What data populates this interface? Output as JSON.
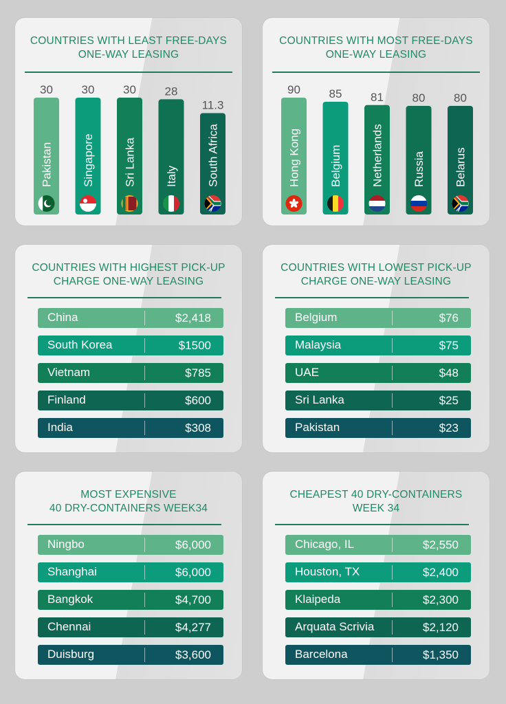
{
  "colors": {
    "row_fills": [
      "#5fb389",
      "#0c9c7c",
      "#137f58",
      "#0e6552",
      "#0e5560"
    ],
    "bar_fills": [
      "#5fb389",
      "#0c9c7c",
      "#137f58",
      "#107152",
      "#0e6552"
    ],
    "title": "#1f8a63"
  },
  "chart_data": [
    {
      "type": "bar",
      "title": "COUNTRIES WITH LEAST FREE-DAYS ONE-WAY LEASING",
      "title_lines": [
        "COUNTRIES WITH LEAST FREE-DAYS",
        "ONE-WAY LEASING"
      ],
      "categories": [
        "Pakistan",
        "Singapore",
        "Sri Lanka",
        "Italy",
        "South Africa"
      ],
      "values": [
        30,
        30,
        30,
        28,
        11.3
      ],
      "value_labels": [
        "30",
        "30",
        "30",
        "28",
        "11.3"
      ],
      "flags": [
        "flag-pakistan",
        "flag-singapore",
        "flag-sri-lanka",
        "flag-italy",
        "flag-south-africa"
      ]
    },
    {
      "type": "bar",
      "title": "COUNTRIES WITH MOST FREE-DAYS ONE-WAY LEASING",
      "title_lines": [
        "COUNTRIES WITH MOST FREE-DAYS",
        "ONE-WAY LEASING"
      ],
      "categories": [
        "Hong Kong",
        "Belgium",
        "Netherlands",
        "Russia",
        "Belarus"
      ],
      "values": [
        90,
        85,
        81,
        80,
        80
      ],
      "value_labels": [
        "90",
        "85",
        "81",
        "80",
        "80"
      ],
      "flags": [
        "flag-hong-kong",
        "flag-belgium",
        "flag-netherlands",
        "flag-russia",
        "flag-south-africa"
      ]
    },
    {
      "type": "table",
      "title": "COUNTRIES WITH HIGHEST PICK-UP CHARGE ONE-WAY LEASING",
      "title_lines": [
        "COUNTRIES WITH HIGHEST PICK-UP",
        "CHARGE ONE-WAY LEASING"
      ],
      "rows": [
        {
          "label": "China",
          "value": "$2,418"
        },
        {
          "label": "South Korea",
          "value": "$1500"
        },
        {
          "label": "Vietnam",
          "value": "$785"
        },
        {
          "label": "Finland",
          "value": "$600"
        },
        {
          "label": "India",
          "value": "$308"
        }
      ]
    },
    {
      "type": "table",
      "title": "COUNTRIES WITH LOWEST PICK-UP CHARGE ONE-WAY LEASING",
      "title_lines": [
        "COUNTRIES WITH LOWEST PICK-UP",
        "CHARGE ONE-WAY LEASING"
      ],
      "rows": [
        {
          "label": "Belgium",
          "value": "$76"
        },
        {
          "label": "Malaysia",
          "value": "$75"
        },
        {
          "label": "UAE",
          "value": "$48"
        },
        {
          "label": "Sri Lanka",
          "value": "$25"
        },
        {
          "label": "Pakistan",
          "value": "$23"
        }
      ]
    },
    {
      "type": "table",
      "title": "MOST EXPENSIVE 40 DRY-CONTAINERS WEEK34",
      "title_lines": [
        "MOST EXPENSIVE",
        "40 DRY-CONTAINERS WEEK34"
      ],
      "rows": [
        {
          "label": "Ningbo",
          "value": "$6,000"
        },
        {
          "label": "Shanghai",
          "value": "$6,000"
        },
        {
          "label": "Bangkok",
          "value": "$4,700"
        },
        {
          "label": "Chennai",
          "value": "$4,277"
        },
        {
          "label": "Duisburg",
          "value": "$3,600"
        }
      ]
    },
    {
      "type": "table",
      "title": "CHEAPEST 40 DRY-CONTAINERS WEEK 34",
      "title_lines": [
        "CHEAPEST 40 DRY-CONTAINERS",
        "WEEK 34"
      ],
      "rows": [
        {
          "label": "Chicago, IL",
          "value": "$2,550"
        },
        {
          "label": "Houston, TX",
          "value": "$2,400"
        },
        {
          "label": "Klaipeda",
          "value": "$2,300"
        },
        {
          "label": "Arquata Scrivia",
          "value": "$2,120"
        },
        {
          "label": "Barcelona",
          "value": "$1,350"
        }
      ]
    }
  ]
}
